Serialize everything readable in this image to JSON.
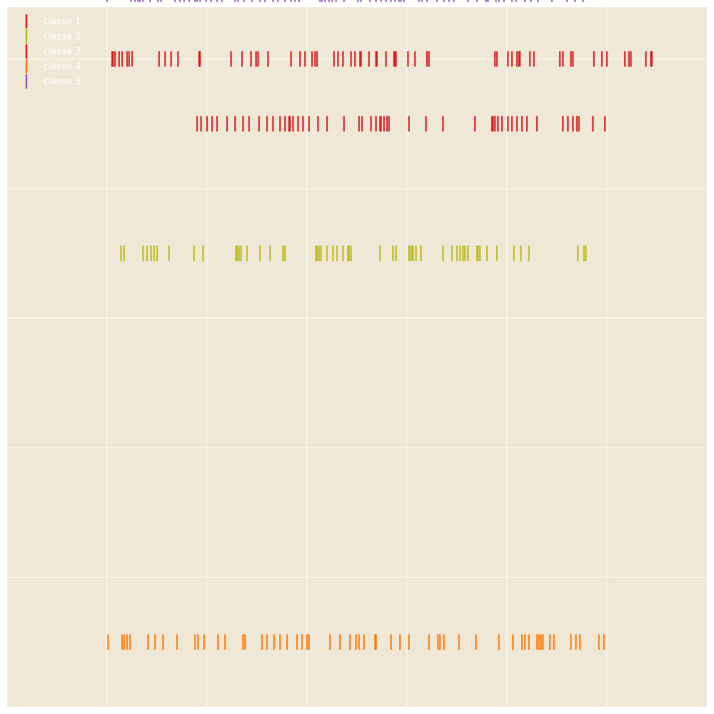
{
  "chart_data": {
    "type": "eventplot",
    "title": "",
    "xlabel": "",
    "ylabel": "",
    "xlim": [
      -1.0,
      6.0
    ],
    "ylim": [
      -4.5,
      0.9
    ],
    "grid": true,
    "tick_labels_visible": false,
    "legend_position": "top-left",
    "background_color": "#efe8d7",
    "grid_color": "#ffffff",
    "x_gridlines": [
      0,
      1,
      2,
      3,
      4,
      5
    ],
    "y_gridlines": [
      0.5,
      -0.5,
      -1.5,
      -2.5,
      -3.5
    ],
    "series": [
      {
        "name": "classe 1",
        "color": "#d62728",
        "lineoffset": 0.0,
        "positions": [
          0.9,
          0.94,
          1.0,
          1.05,
          1.1,
          1.2,
          1.28,
          1.36,
          1.42,
          1.52,
          1.6,
          1.66,
          1.73,
          1.78,
          1.82,
          1.83,
          1.86,
          1.91,
          1.96,
          2.02,
          2.11,
          2.2,
          2.37,
          2.52,
          2.55,
          2.64,
          2.69,
          2.73,
          2.74,
          2.77,
          2.8,
          2.82,
          3.02,
          3.19,
          3.36,
          3.68,
          3.85,
          3.86,
          3.88,
          3.91,
          3.95,
          4.01,
          4.05,
          4.1,
          4.15,
          4.2,
          4.3,
          4.56,
          4.61,
          4.66,
          4.7,
          4.72,
          4.86,
          4.98
        ]
      },
      {
        "name": "classe 2",
        "color": "#bcbd22",
        "lineoffset": -1.0,
        "positions": [
          0.14,
          0.17,
          0.36,
          0.4,
          0.44,
          0.47,
          0.5,
          0.62,
          0.87,
          0.96,
          1.29,
          1.3,
          1.32,
          1.34,
          1.4,
          1.53,
          1.63,
          1.76,
          1.78,
          2.09,
          2.1,
          2.12,
          2.14,
          2.2,
          2.26,
          2.3,
          2.36,
          2.41,
          2.42,
          2.44,
          2.73,
          2.86,
          2.89,
          3.02,
          3.03,
          3.05,
          3.06,
          3.09,
          3.14,
          3.36,
          3.45,
          3.5,
          3.53,
          3.56,
          3.58,
          3.61,
          3.7,
          3.71,
          3.73,
          3.8,
          3.9,
          4.07,
          4.14,
          4.22,
          4.71,
          4.77,
          4.79
        ]
      },
      {
        "name": "classe 3",
        "color": "#d62728",
        "lineoffset": 0.5,
        "positions": [
          0.05,
          0.06,
          0.08,
          0.12,
          0.15,
          0.2,
          0.22,
          0.25,
          0.52,
          0.58,
          0.64,
          0.71,
          0.92,
          0.93,
          1.24,
          1.35,
          1.44,
          1.49,
          1.51,
          1.61,
          1.84,
          1.93,
          1.98,
          2.05,
          2.08,
          2.1,
          2.27,
          2.31,
          2.36,
          2.44,
          2.48,
          2.53,
          2.54,
          2.62,
          2.69,
          2.7,
          2.79,
          2.87,
          2.88,
          2.89,
          3.01,
          3.08,
          3.2,
          3.2,
          3.22,
          3.88,
          3.9,
          4.01,
          4.05,
          4.1,
          4.12,
          4.13,
          4.23,
          4.27,
          4.53,
          4.56,
          4.64,
          4.66,
          4.87,
          4.95,
          5.0,
          5.18,
          5.22,
          5.24,
          5.39,
          5.44,
          5.45
        ]
      },
      {
        "name": "classe 4",
        "color": "#ff7f0e",
        "lineoffset": -4.0,
        "positions": [
          0.01,
          0.15,
          0.17,
          0.2,
          0.23,
          0.41,
          0.48,
          0.56,
          0.7,
          0.88,
          0.91,
          0.97,
          1.11,
          1.18,
          1.36,
          1.38,
          1.55,
          1.6,
          1.67,
          1.73,
          1.8,
          1.9,
          1.95,
          2.0,
          2.02,
          2.23,
          2.33,
          2.43,
          2.49,
          2.52,
          2.57,
          2.68,
          2.69,
          2.84,
          2.93,
          3.02,
          3.22,
          3.31,
          3.33,
          3.37,
          3.52,
          3.69,
          3.92,
          4.06,
          4.15,
          4.18,
          4.22,
          4.3,
          4.32,
          4.34,
          4.36,
          4.43,
          4.47,
          4.64,
          4.69,
          4.73,
          4.92,
          4.97
        ]
      },
      {
        "name": "classe 5",
        "color": "#9467bd",
        "lineoffset": 1.0,
        "positions": [
          0.0,
          0.24,
          0.28,
          0.31,
          0.33,
          0.36,
          0.43,
          0.51,
          0.54,
          0.68,
          0.73,
          0.77,
          0.82,
          0.88,
          0.9,
          0.93,
          0.99,
          1.04,
          1.1,
          1.15,
          1.28,
          1.31,
          1.37,
          1.45,
          1.53,
          1.58,
          1.66,
          1.71,
          1.78,
          1.84,
          1.88,
          1.92,
          2.13,
          2.15,
          2.18,
          2.22,
          2.25,
          2.29,
          2.37,
          2.51,
          2.54,
          2.63,
          2.69,
          2.74,
          2.79,
          2.84,
          2.88,
          2.92,
          2.94,
          2.97,
          3.12,
          3.15,
          3.2,
          3.3,
          3.37,
          3.42,
          3.47,
          3.61,
          3.7,
          3.79,
          3.81,
          3.89,
          3.92,
          3.97,
          4.05,
          4.09,
          4.18,
          4.24,
          4.31,
          4.45,
          4.6,
          4.68,
          4.76
        ]
      }
    ]
  }
}
